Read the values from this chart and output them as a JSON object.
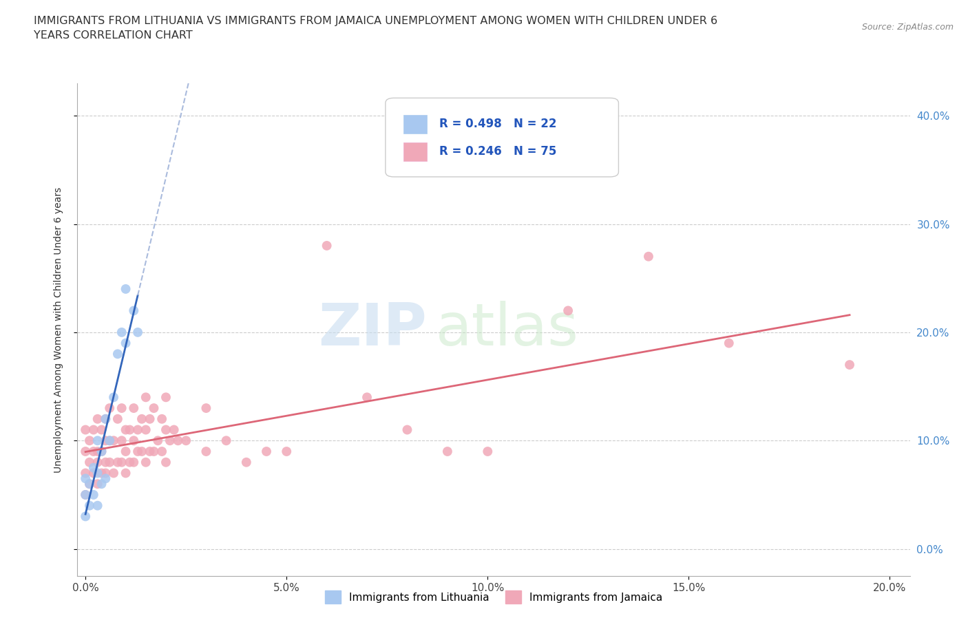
{
  "title": "IMMIGRANTS FROM LITHUANIA VS IMMIGRANTS FROM JAMAICA UNEMPLOYMENT AMONG WOMEN WITH CHILDREN UNDER 6\nYEARS CORRELATION CHART",
  "source_text": "Source: ZipAtlas.com",
  "ylabel": "Unemployment Among Women with Children Under 6 years",
  "xlim": [
    -0.002,
    0.205
  ],
  "ylim": [
    -0.025,
    0.43
  ],
  "yticks": [
    0.0,
    0.1,
    0.2,
    0.3,
    0.4
  ],
  "xticks": [
    0.0,
    0.05,
    0.1,
    0.15,
    0.2
  ],
  "ytick_labels": [
    "0.0%",
    "10.0%",
    "20.0%",
    "30.0%",
    "40.0%"
  ],
  "xtick_labels": [
    "0.0%",
    "5.0%",
    "10.0%",
    "15.0%",
    "20.0%"
  ],
  "background_color": "#ffffff",
  "grid_color": "#cccccc",
  "lithuania_color": "#a8c8f0",
  "jamaica_color": "#f0a8b8",
  "lithuania_line_color": "#3366bb",
  "lithuania_dash_color": "#aabbdd",
  "jamaica_line_color": "#dd6677",
  "R_lithuania": 0.498,
  "N_lithuania": 22,
  "R_jamaica": 0.246,
  "N_jamaica": 75,
  "legend_label_1": "Immigrants from Lithuania",
  "legend_label_2": "Immigrants from Jamaica",
  "watermark_zip": "ZIP",
  "watermark_atlas": "atlas",
  "lithuania_x": [
    0.0,
    0.0,
    0.0,
    0.001,
    0.001,
    0.002,
    0.002,
    0.003,
    0.003,
    0.003,
    0.004,
    0.004,
    0.005,
    0.005,
    0.006,
    0.007,
    0.008,
    0.009,
    0.01,
    0.01,
    0.012,
    0.013
  ],
  "lithuania_y": [
    0.03,
    0.05,
    0.065,
    0.04,
    0.06,
    0.05,
    0.075,
    0.04,
    0.07,
    0.1,
    0.06,
    0.09,
    0.065,
    0.12,
    0.1,
    0.14,
    0.18,
    0.2,
    0.19,
    0.24,
    0.22,
    0.2
  ],
  "jamaica_x": [
    0.0,
    0.0,
    0.0,
    0.0,
    0.001,
    0.001,
    0.001,
    0.002,
    0.002,
    0.002,
    0.003,
    0.003,
    0.003,
    0.003,
    0.004,
    0.004,
    0.004,
    0.005,
    0.005,
    0.005,
    0.005,
    0.006,
    0.006,
    0.006,
    0.007,
    0.007,
    0.008,
    0.008,
    0.009,
    0.009,
    0.009,
    0.01,
    0.01,
    0.01,
    0.011,
    0.011,
    0.012,
    0.012,
    0.012,
    0.013,
    0.013,
    0.014,
    0.014,
    0.015,
    0.015,
    0.015,
    0.016,
    0.016,
    0.017,
    0.017,
    0.018,
    0.019,
    0.019,
    0.02,
    0.02,
    0.02,
    0.021,
    0.022,
    0.023,
    0.025,
    0.03,
    0.03,
    0.035,
    0.04,
    0.045,
    0.05,
    0.06,
    0.07,
    0.08,
    0.09,
    0.1,
    0.12,
    0.14,
    0.16,
    0.19
  ],
  "jamaica_y": [
    0.05,
    0.07,
    0.09,
    0.11,
    0.06,
    0.08,
    0.1,
    0.07,
    0.09,
    0.11,
    0.06,
    0.08,
    0.09,
    0.12,
    0.07,
    0.09,
    0.11,
    0.07,
    0.08,
    0.1,
    0.12,
    0.08,
    0.1,
    0.13,
    0.07,
    0.1,
    0.08,
    0.12,
    0.08,
    0.1,
    0.13,
    0.07,
    0.09,
    0.11,
    0.08,
    0.11,
    0.08,
    0.1,
    0.13,
    0.09,
    0.11,
    0.09,
    0.12,
    0.08,
    0.11,
    0.14,
    0.09,
    0.12,
    0.09,
    0.13,
    0.1,
    0.09,
    0.12,
    0.08,
    0.11,
    0.14,
    0.1,
    0.11,
    0.1,
    0.1,
    0.09,
    0.13,
    0.1,
    0.08,
    0.09,
    0.09,
    0.28,
    0.14,
    0.11,
    0.09,
    0.09,
    0.22,
    0.27,
    0.19,
    0.17
  ]
}
